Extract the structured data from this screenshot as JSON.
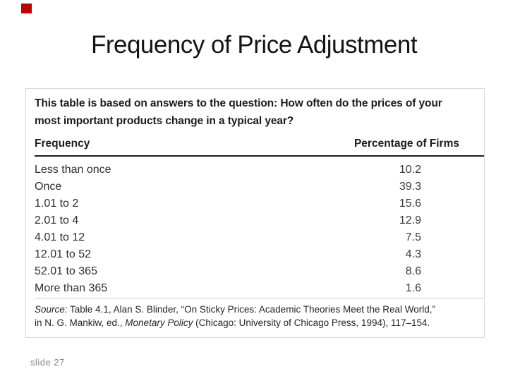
{
  "slide": {
    "title": "Frequency of Price Adjustment",
    "footer": "slide 27",
    "accent_color": "#c00000"
  },
  "table": {
    "caption_line1": "This table is based on answers to the question: How often do the prices of your",
    "caption_line2": "most important products change in a typical year?",
    "columns": {
      "frequency": "Frequency",
      "percentage": "Percentage of Firms"
    },
    "rows": [
      {
        "frequency": "Less than once",
        "percentage": "10.2"
      },
      {
        "frequency": "Once",
        "percentage": "39.3"
      },
      {
        "frequency": "1.01 to 2",
        "percentage": "15.6"
      },
      {
        "frequency": "2.01 to 4",
        "percentage": "12.9"
      },
      {
        "frequency": "4.01 to 12",
        "percentage": "7.5"
      },
      {
        "frequency": "12.01 to 52",
        "percentage": "4.3"
      },
      {
        "frequency": "52.01 to 365",
        "percentage": "8.6"
      },
      {
        "frequency": "More than 365",
        "percentage": "1.6"
      }
    ],
    "source_label": "Source:",
    "source_text1": " Table 4.1, Alan S. Blinder, “On Sticky Prices: Academic Theories Meet the Real World,”",
    "source_text2": "in N. G. Mankiw, ed., ",
    "source_italic": "Monetary Policy",
    "source_text3": " (Chicago: University of Chicago Press, 1994), 117–154."
  },
  "chart_data": {
    "type": "table",
    "title": "Frequency of Price Adjustment",
    "columns": [
      "Frequency",
      "Percentage of Firms"
    ],
    "rows": [
      [
        "Less than once",
        10.2
      ],
      [
        "Once",
        39.3
      ],
      [
        "1.01 to 2",
        15.6
      ],
      [
        "2.01 to 4",
        12.9
      ],
      [
        "4.01 to 12",
        7.5
      ],
      [
        "12.01 to 52",
        4.3
      ],
      [
        "52.01 to 365",
        8.6
      ],
      [
        "More than 365",
        1.6
      ]
    ],
    "note": "This table is based on answers to the question: How often do the prices of your most important products change in a typical year?",
    "source": "Source: Table 4.1, Alan S. Blinder, “On Sticky Prices: Academic Theories Meet the Real World,” in N. G. Mankiw, ed., Monetary Policy (Chicago: University of Chicago Press, 1994), 117–154."
  }
}
